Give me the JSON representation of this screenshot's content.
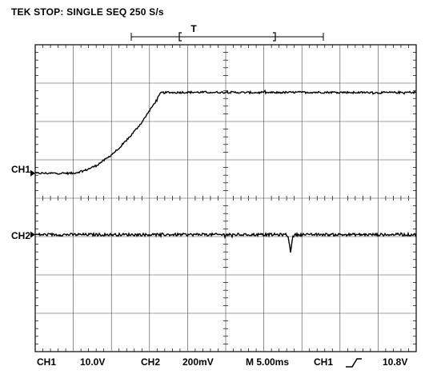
{
  "header": {
    "status": "TEK STOP: SINGLE SEQ 250 S/s",
    "trigger_marker": "T"
  },
  "channels": [
    {
      "name": "CH1",
      "color": "#000000"
    },
    {
      "name": "CH2",
      "color": "#000000"
    }
  ],
  "readout": {
    "ch1_label": "CH1",
    "ch1_scale": "10.0V",
    "ch2_label": "CH2",
    "ch2_scale": "200mV",
    "timebase": "M 5.00ms",
    "trigger_source": "CH1",
    "trigger_slope_icon": "rising-edge-icon",
    "trigger_level": "10.8V"
  },
  "chart_data": {
    "type": "line",
    "grid": true,
    "divisions": {
      "x": 10,
      "y": 8
    },
    "xlim": [
      0,
      10
    ],
    "ylim": [
      0,
      8
    ],
    "series": [
      {
        "name": "CH1",
        "x": [
          0,
          1.0,
          1.3,
          1.6,
          1.9,
          2.2,
          2.5,
          2.8,
          3.0,
          3.2,
          3.3,
          4.0,
          5.0,
          6.0,
          7.0,
          8.0,
          9.0,
          10.0
        ],
        "y": [
          4.65,
          4.65,
          4.72,
          4.85,
          5.05,
          5.3,
          5.62,
          5.98,
          6.28,
          6.58,
          6.75,
          6.76,
          6.76,
          6.75,
          6.76,
          6.76,
          6.75,
          6.76
        ],
        "noise": 0.025
      },
      {
        "name": "CH2",
        "x": [
          0,
          6.6,
          6.65,
          6.7,
          6.75,
          6.8,
          10.0
        ],
        "y": [
          3.05,
          3.05,
          2.95,
          2.6,
          2.95,
          3.05,
          3.05
        ],
        "noise": 0.035
      }
    ]
  }
}
